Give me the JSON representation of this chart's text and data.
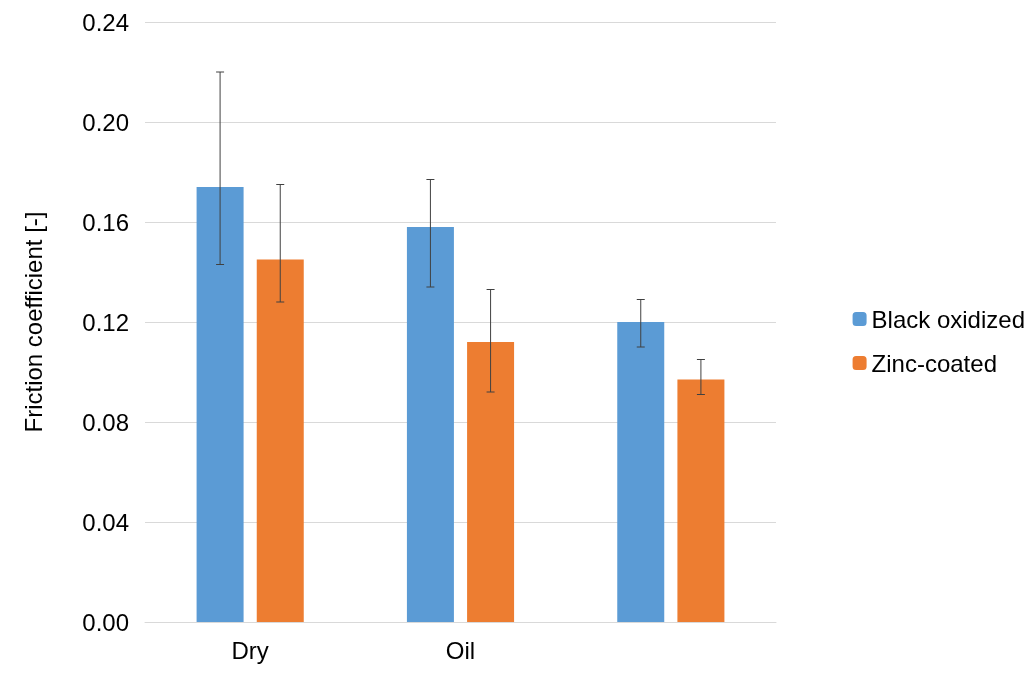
{
  "chart_data": {
    "type": "bar",
    "ylabel": "Friction coefficient [-]",
    "categories": [
      "Dry",
      "Oil",
      null
    ],
    "series": [
      {
        "name": "Black oxidized",
        "color": "#5b9bd5",
        "values": [
          0.174,
          0.158,
          0.12
        ],
        "errors": [
          [
            0.143,
            0.22
          ],
          [
            0.134,
            0.177
          ],
          [
            0.11,
            0.129
          ]
        ]
      },
      {
        "name": "Zinc-coated",
        "color": "#ed7d31",
        "values": [
          0.145,
          0.112,
          0.097
        ],
        "errors": [
          [
            0.128,
            0.175
          ],
          [
            0.092,
            0.133
          ],
          [
            0.091,
            0.105
          ]
        ]
      }
    ],
    "ylim": [
      0,
      0.24
    ],
    "yticks": [
      {
        "value": 0,
        "label": "0.00"
      },
      {
        "value": 0.04,
        "label": "0.04"
      },
      {
        "value": 0.08,
        "label": "0.08"
      },
      {
        "value": 0.12,
        "label": "0.12"
      },
      {
        "value": 0.16,
        "label": "0.16"
      },
      {
        "value": 0.2,
        "label": "0.20"
      },
      {
        "value": 0.24,
        "label": "0.24"
      }
    ],
    "grid": "y",
    "legend": "right"
  }
}
